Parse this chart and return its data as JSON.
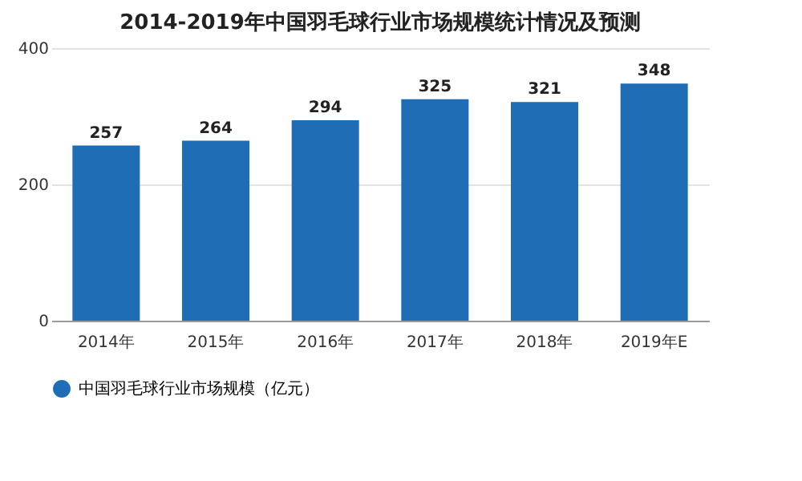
{
  "chart_data": {
    "type": "bar",
    "title": "2014-2019年中国羽毛球行业市场规模统计情况及预测",
    "categories": [
      "2014年",
      "2015年",
      "2016年",
      "2017年",
      "2018年",
      "2019年E"
    ],
    "series": [
      {
        "name": "中国羽毛球行业市场规模（亿元）",
        "color": "#1f6db4",
        "values": [
          257,
          264,
          294,
          325,
          321,
          348
        ]
      }
    ],
    "ylim": [
      0,
      400
    ],
    "yticks": [
      0,
      200,
      400
    ],
    "grid": "y",
    "data_labels": true,
    "legend": "bottom"
  }
}
